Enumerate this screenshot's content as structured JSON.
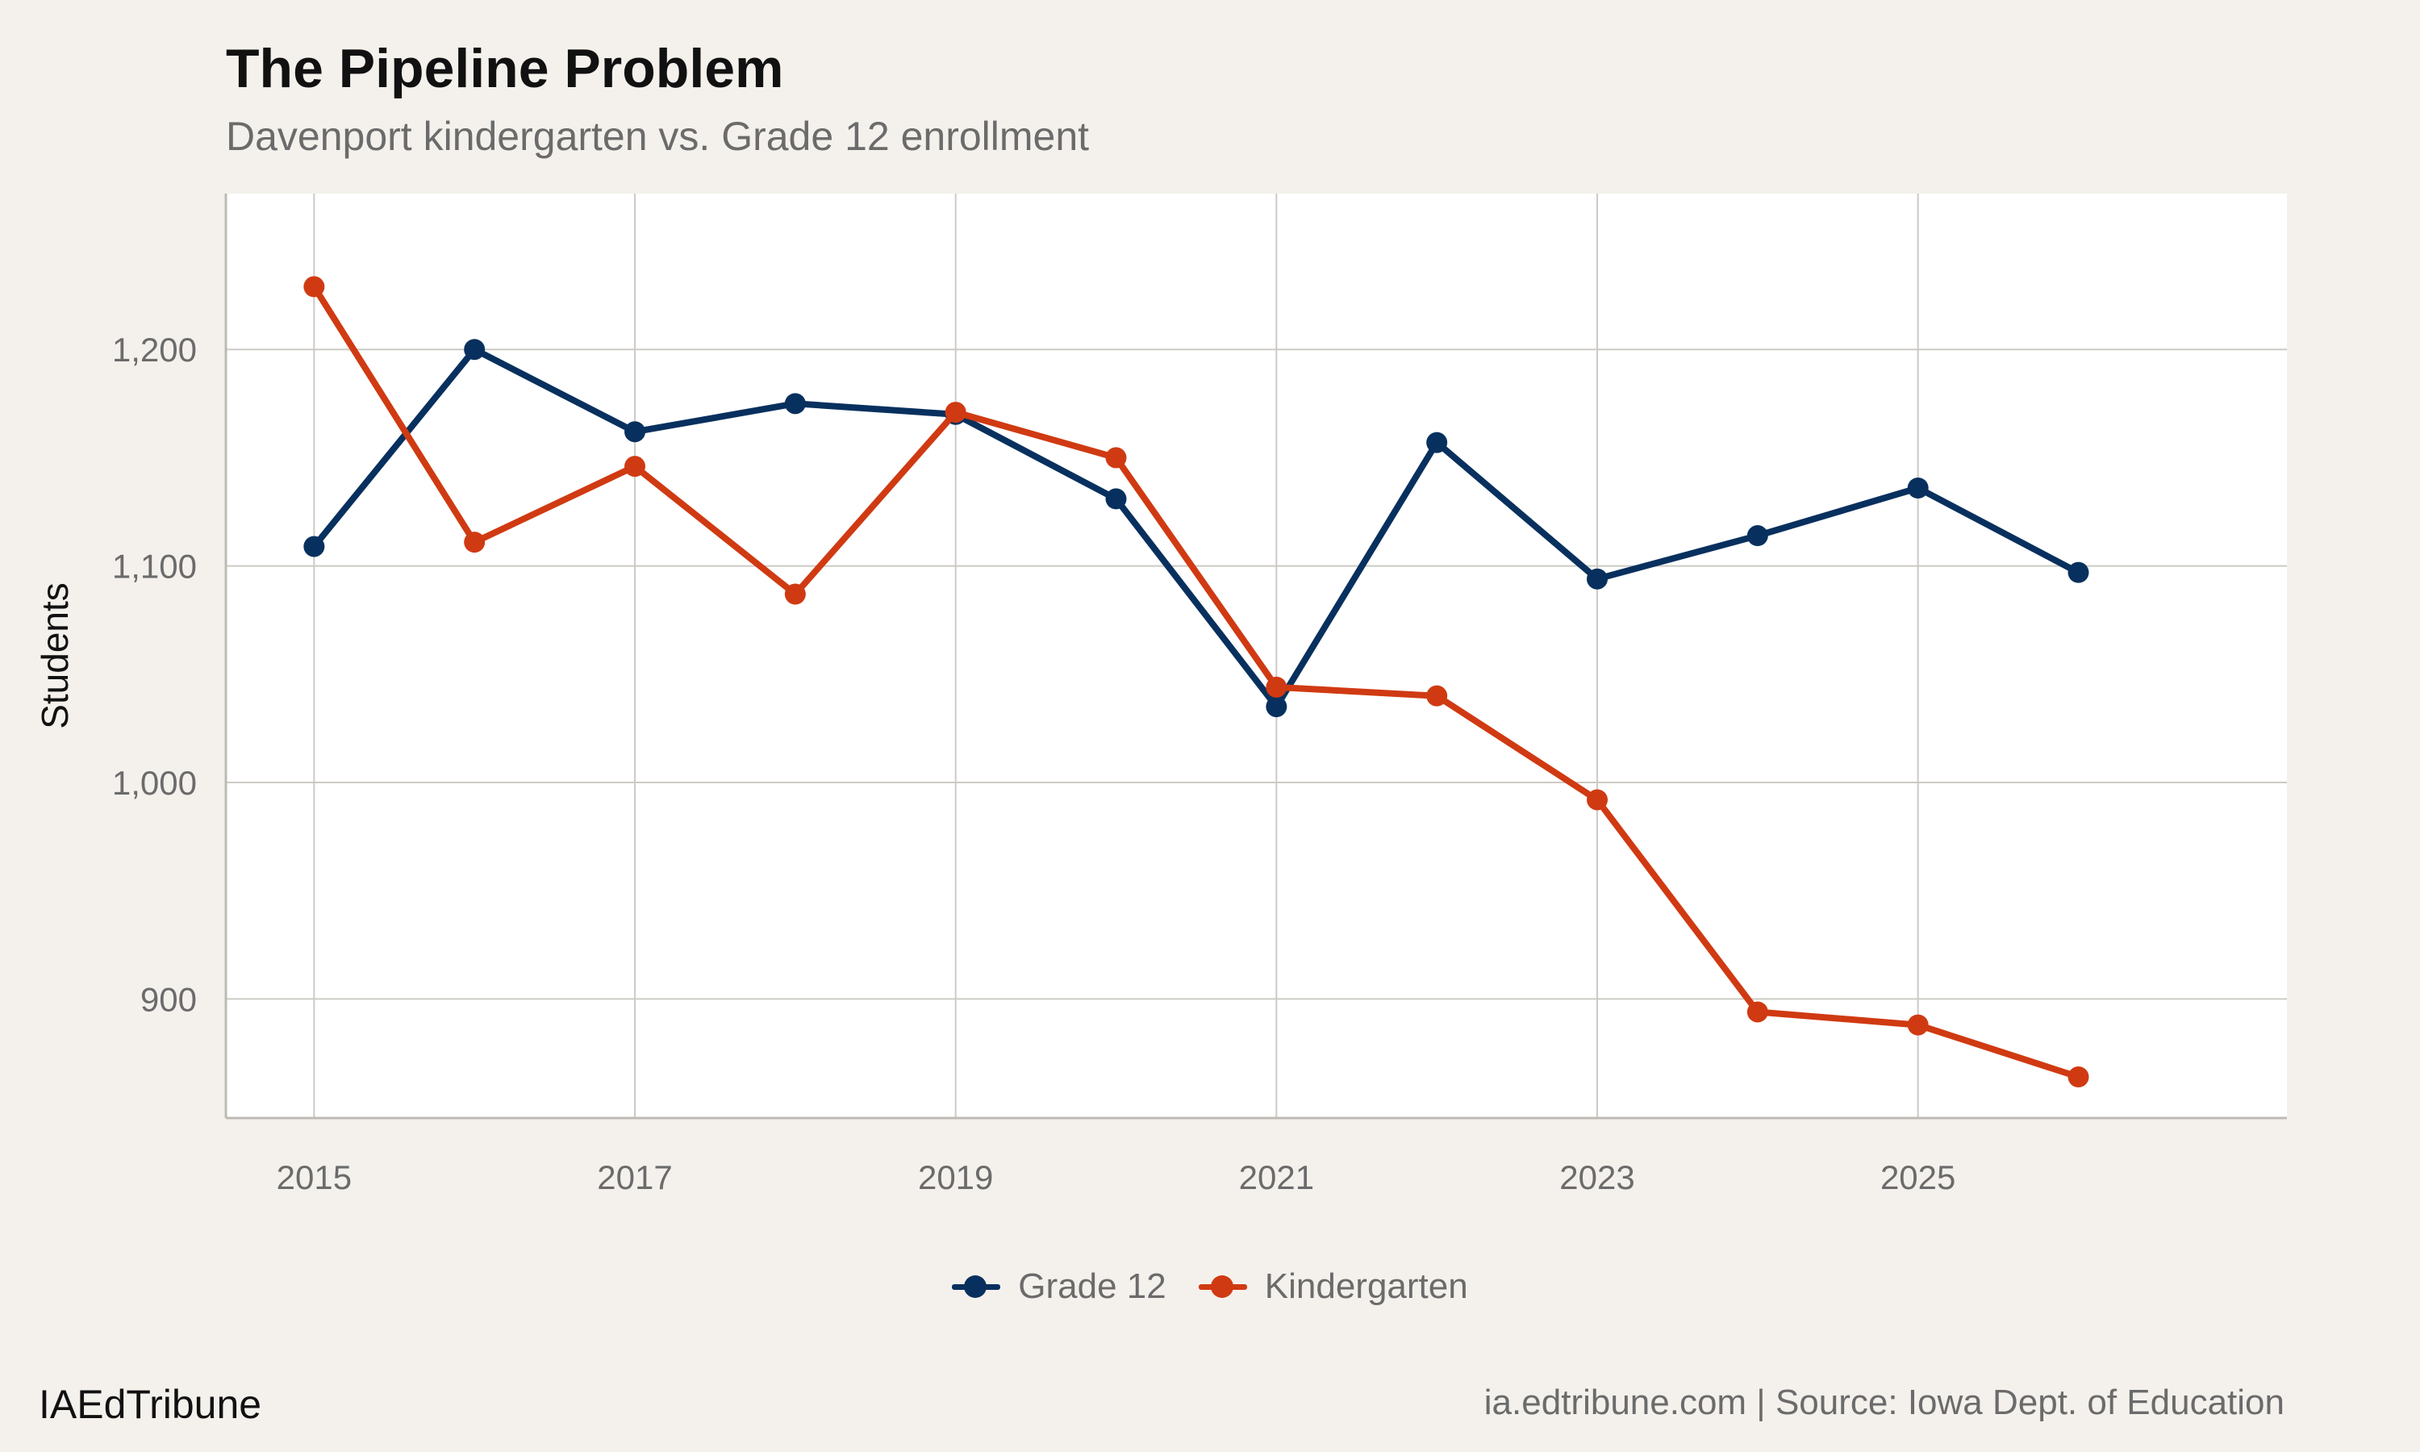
{
  "colors": {
    "grade12": "#08305e",
    "kindergarten": "#d03a12",
    "panel": "#ffffff",
    "background": "#f4f1ec",
    "grid": "#cdcac4",
    "axis_text": "#6b6b6b"
  },
  "chart_data": {
    "type": "line",
    "title": "The Pipeline Problem",
    "subtitle": "Davenport kindergarten vs. Grade 12 enrollment",
    "xlabel": "",
    "ylabel": "Students",
    "x": [
      2015,
      2016,
      2017,
      2018,
      2019,
      2020,
      2021,
      2022,
      2023,
      2024,
      2025,
      2026
    ],
    "xlim": [
      2014.45,
      2027.3
    ],
    "ylim": [
      845,
      1272
    ],
    "x_ticks": [
      2015,
      2017,
      2019,
      2021,
      2023,
      2025
    ],
    "y_ticks": [
      900,
      1000,
      1100,
      1200
    ],
    "y_tick_labels": [
      "900",
      "1,000",
      "1,100",
      "1,200"
    ],
    "grid": true,
    "legend_position": "bottom",
    "series": [
      {
        "name": "Grade 12",
        "color_key": "grade12",
        "values": [
          1109,
          1200,
          1162,
          1175,
          1170,
          1131,
          1035,
          1157,
          1094,
          1114,
          1136,
          1097
        ]
      },
      {
        "name": "Kindergarten",
        "color_key": "kindergarten",
        "values": [
          1229,
          1111,
          1146,
          1087,
          1171,
          1150,
          1044,
          1040,
          992,
          894,
          888,
          864
        ]
      }
    ]
  },
  "footer": {
    "brand": "IAEdTribune",
    "source": "ia.edtribune.com | Source: Iowa Dept. of Education"
  }
}
